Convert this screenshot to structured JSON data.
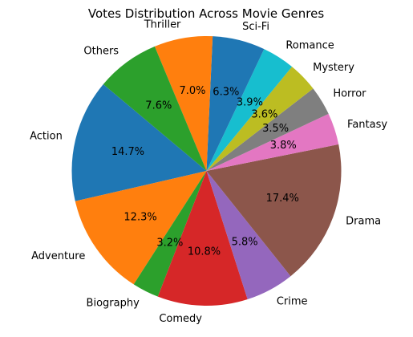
{
  "chart_data": {
    "type": "pie",
    "title": "Votes Distribution Across Movie Genres",
    "start_angle_deg": 140,
    "direction": "counterclockwise",
    "slices": [
      {
        "label": "Action",
        "value": 14.7,
        "pct_text": "14.7%",
        "color": "#1f77b4"
      },
      {
        "label": "Adventure",
        "value": 12.3,
        "pct_text": "12.3%",
        "color": "#ff7f0e"
      },
      {
        "label": "Biography",
        "value": 3.2,
        "pct_text": "3.2%",
        "color": "#2ca02c"
      },
      {
        "label": "Comedy",
        "value": 10.8,
        "pct_text": "10.8%",
        "color": "#d62728"
      },
      {
        "label": "Crime",
        "value": 5.8,
        "pct_text": "5.8%",
        "color": "#9467bd"
      },
      {
        "label": "Drama",
        "value": 17.4,
        "pct_text": "17.4%",
        "color": "#8c564b"
      },
      {
        "label": "Fantasy",
        "value": 3.8,
        "pct_text": "3.8%",
        "color": "#e377c2"
      },
      {
        "label": "Horror",
        "value": 3.5,
        "pct_text": "3.5%",
        "color": "#7f7f7f"
      },
      {
        "label": "Mystery",
        "value": 3.6,
        "pct_text": "3.6%",
        "color": "#bcbd22"
      },
      {
        "label": "Romance",
        "value": 3.9,
        "pct_text": "3.9%",
        "color": "#17becf"
      },
      {
        "label": "Sci-Fi",
        "value": 6.3,
        "pct_text": "6.3%",
        "color": "#1f77b4"
      },
      {
        "label": "Thriller",
        "value": 7.0,
        "pct_text": "7.0%",
        "color": "#ff7f0e"
      },
      {
        "label": "Others",
        "value": 7.6,
        "pct_text": "7.6%",
        "color": "#2ca02c"
      }
    ]
  }
}
